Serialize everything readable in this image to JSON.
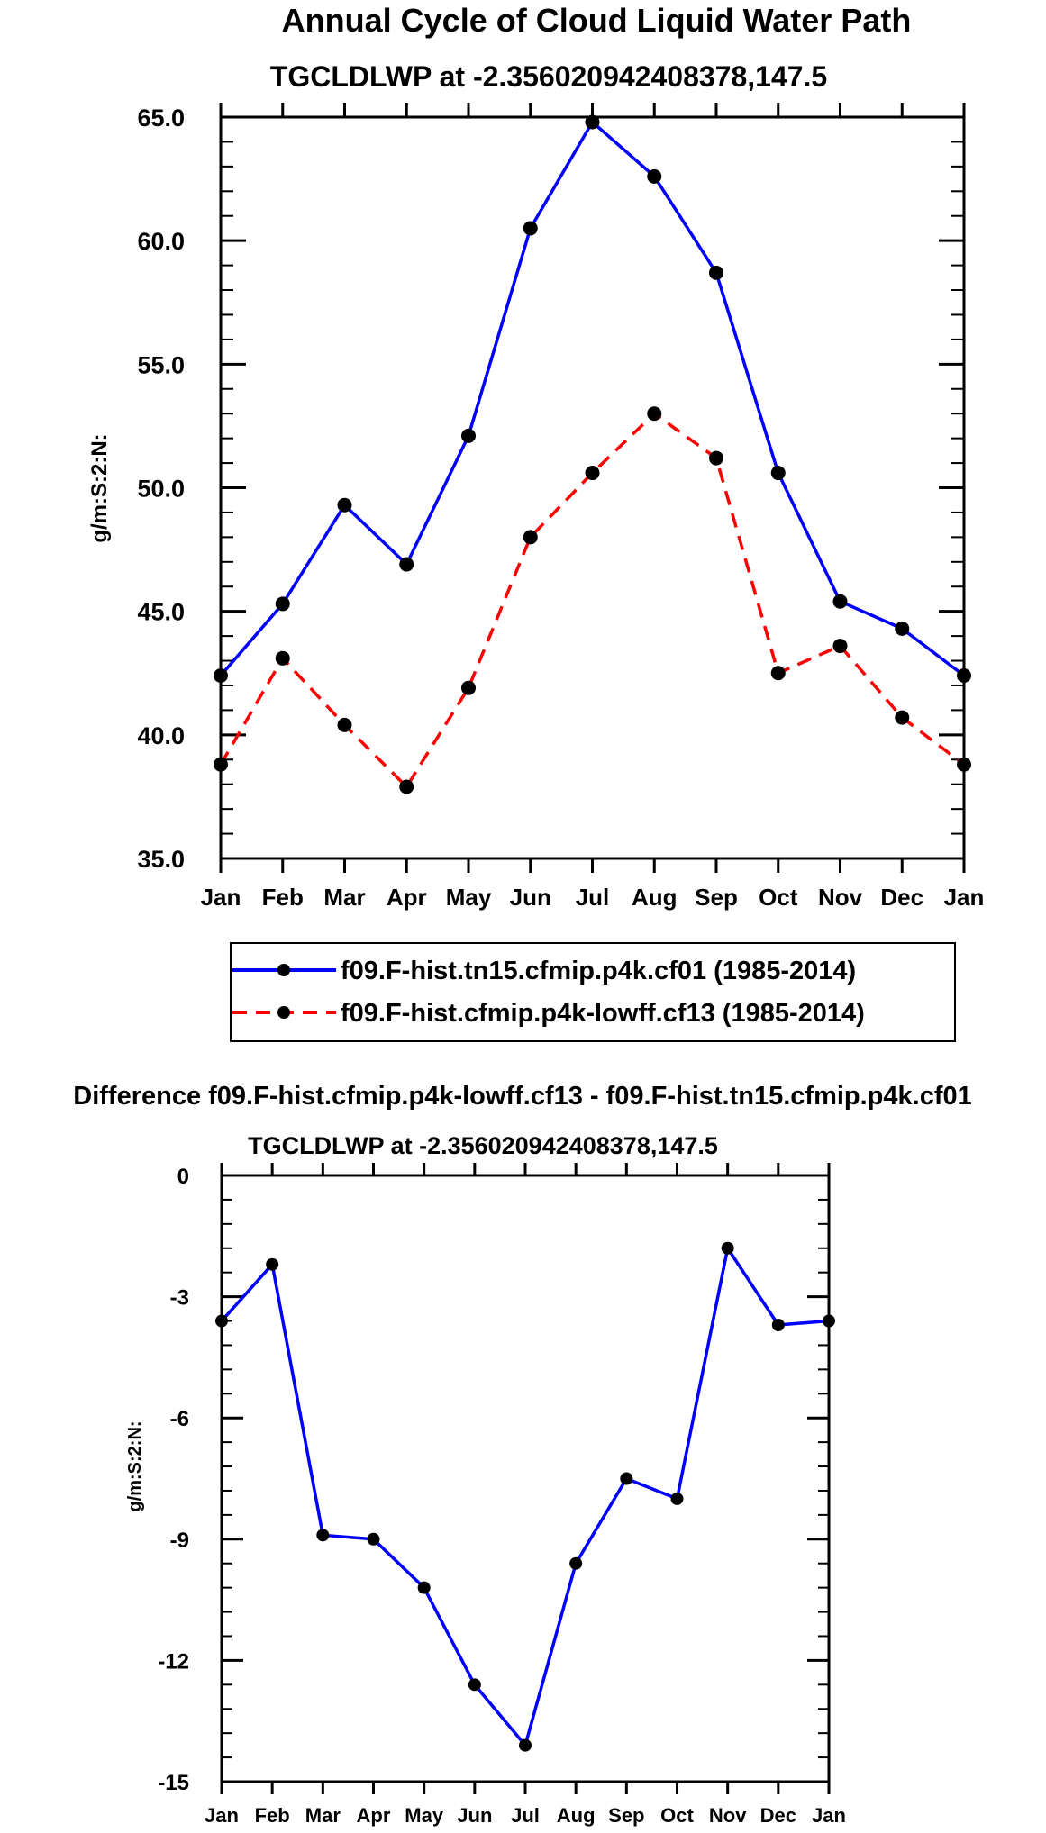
{
  "chart_data": [
    {
      "type": "line",
      "title": "Annual Cycle of Cloud Liquid Water Path",
      "subtitle": "TGCLDLWP at -2.356020942408378,147.5",
      "xlabel": "",
      "ylabel": "g/m:S:2:N:",
      "categories": [
        "Jan",
        "Feb",
        "Mar",
        "Apr",
        "May",
        "Jun",
        "Jul",
        "Aug",
        "Sep",
        "Oct",
        "Nov",
        "Dec",
        "Jan"
      ],
      "ylim": [
        35.0,
        65.0
      ],
      "yticks": [
        "35.0",
        "40.0",
        "45.0",
        "50.0",
        "55.0",
        "60.0",
        "65.0"
      ],
      "legend_position": "bottom",
      "series": [
        {
          "name": "f09.F-hist.tn15.cfmip.p4k.cf01 (1985-2014)",
          "color": "#0000ff",
          "style": "solid",
          "values": [
            42.4,
            45.3,
            49.3,
            46.9,
            52.1,
            60.5,
            64.8,
            62.6,
            58.7,
            50.6,
            45.4,
            44.3,
            42.4
          ]
        },
        {
          "name": "f09.F-hist.cfmip.p4k-lowff.cf13 (1985-2014)",
          "color": "#ff0000",
          "style": "dashed",
          "values": [
            38.8,
            43.1,
            40.4,
            37.9,
            41.9,
            48.0,
            50.6,
            53.0,
            51.2,
            42.5,
            43.6,
            40.7,
            38.8
          ]
        }
      ]
    },
    {
      "type": "line",
      "title": "Difference f09.F-hist.cfmip.p4k-lowff.cf13 - f09.F-hist.tn15.cfmip.p4k.cf01",
      "subtitle": "TGCLDLWP at -2.356020942408378,147.5",
      "xlabel": "",
      "ylabel": "g/m:S:2:N:",
      "categories": [
        "Jan",
        "Feb",
        "Mar",
        "Apr",
        "May",
        "Jun",
        "Jul",
        "Aug",
        "Sep",
        "Oct",
        "Nov",
        "Dec",
        "Jan"
      ],
      "ylim": [
        -15,
        0
      ],
      "yticks": [
        "-15",
        "-12",
        "-9",
        "-6",
        "-3",
        "0"
      ],
      "series": [
        {
          "name": "Difference",
          "color": "#0000ff",
          "style": "solid",
          "values": [
            -3.6,
            -2.2,
            -8.9,
            -9.0,
            -10.2,
            -12.6,
            -14.1,
            -9.6,
            -7.5,
            -8.0,
            -1.8,
            -3.7,
            -3.6
          ]
        }
      ]
    }
  ]
}
